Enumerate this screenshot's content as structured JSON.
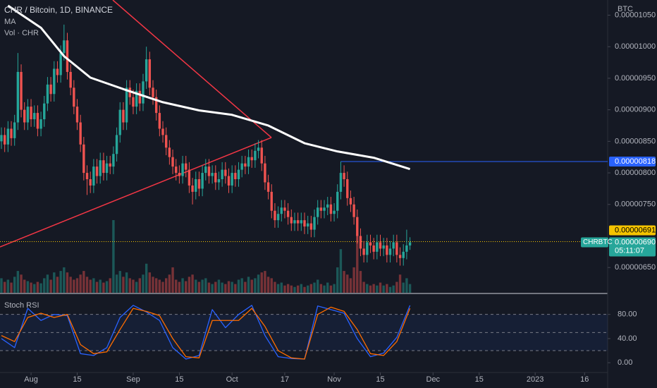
{
  "chart_data": {
    "type": "candlestick",
    "title": "CHR / Bitcoin, 1D, BINANCE",
    "ma_label": "MA",
    "volume_label": "Vol · CHR",
    "rsi_label": "Stoch RSI",
    "currency": "BTC",
    "up_color": "#26a69a",
    "down_color": "#ef5350",
    "xlim": [
      0,
      184
    ],
    "xticks": [
      {
        "value": 9,
        "label": "Aug"
      },
      {
        "value": 23,
        "label": "15"
      },
      {
        "value": 40,
        "label": "Sep"
      },
      {
        "value": 54,
        "label": "15"
      },
      {
        "value": 70,
        "label": "Oct"
      },
      {
        "value": 86,
        "label": "17"
      },
      {
        "value": 101,
        "label": "Nov"
      },
      {
        "value": 115,
        "label": "15"
      },
      {
        "value": 131,
        "label": "Dec"
      },
      {
        "value": 145,
        "label": "15"
      },
      {
        "value": 162,
        "label": "2023"
      },
      {
        "value": 177,
        "label": "16"
      }
    ],
    "ylim": [
      6.1e-06,
      1.074e-05
    ],
    "yticks": [
      {
        "value": 6.5e-06,
        "label": "0.00000650"
      },
      {
        "value": 7.5e-06,
        "label": "0.00000750"
      },
      {
        "value": 8e-06,
        "label": "0.00000800"
      },
      {
        "value": 8.5e-06,
        "label": "0.00000850"
      },
      {
        "value": 9e-06,
        "label": "0.00000900"
      },
      {
        "value": 9.5e-06,
        "label": "0.00000950"
      },
      {
        "value": 1e-05,
        "label": "0.00001000"
      },
      {
        "value": 1.05e-05,
        "label": "0.00001050"
      }
    ],
    "grid": false,
    "candles": [
      [
        8.5e-06,
        8.72e-06,
        8.38e-06,
        8.6e-06
      ],
      [
        8.6e-06,
        8.72e-06,
        8.33e-06,
        8.45e-06
      ],
      [
        8.45e-06,
        8.82e-06,
        8.33e-06,
        8.7e-06
      ],
      [
        8.7e-06,
        8.82e-06,
        8.43e-06,
        8.55e-06
      ],
      [
        8.55e-06,
        8.92e-06,
        8.43e-06,
        8.8e-06
      ],
      [
        8.8e-06,
        9.9e-06,
        8.68e-06,
        9.6e-06
      ],
      [
        9.6e-06,
        9.72e-06,
        8.88e-06,
        9e-06
      ],
      [
        9e-06,
        9.12e-06,
        8.68e-06,
        8.8e-06
      ],
      [
        8.8e-06,
        9.17e-06,
        8.68e-06,
        9.05e-06
      ],
      [
        9.05e-06,
        9.17e-06,
        8.73e-06,
        8.85e-06
      ],
      [
        8.85e-06,
        9.07e-06,
        8.73e-06,
        8.95e-06
      ],
      [
        8.95e-06,
        9.07e-06,
        8.58e-06,
        8.7e-06
      ],
      [
        8.7e-06,
        8.97e-06,
        8.58e-06,
        8.85e-06
      ],
      [
        8.85e-06,
        9.22e-06,
        8.73e-06,
        9.1e-06
      ],
      [
        9.1e-06,
        9.52e-06,
        8.98e-06,
        9.4e-06
      ],
      [
        9.4e-06,
        9.52e-06,
        9.13e-06,
        9.25e-06
      ],
      [
        9.25e-06,
        9.77e-06,
        9.13e-06,
        9.65e-06
      ],
      [
        9.65e-06,
        9.77e-06,
        9.43e-06,
        9.55e-06
      ],
      [
        9.55e-06,
        1.002e-05,
        9.43e-06,
        9.9e-06
      ],
      [
        9.9e-06,
        1.035e-05,
        9.78e-06,
        1.01e-05
      ],
      [
        1.01e-05,
        1.022e-05,
        9.48e-06,
        9.6e-06
      ],
      [
        9.6e-06,
        9.72e-06,
        9.23e-06,
        9.35e-06
      ],
      [
        9.35e-06,
        9.47e-06,
        8.93e-06,
        9.05e-06
      ],
      [
        9.05e-06,
        9.17e-06,
        8.68e-06,
        8.8e-06
      ],
      [
        8.8e-06,
        8.92e-06,
        8.33e-06,
        8.45e-06
      ],
      [
        8.45e-06,
        8.57e-06,
        7.88e-06,
        8e-06
      ],
      [
        8e-06,
        8.12e-06,
        7.65e-06,
        7.9e-06
      ],
      [
        7.9e-06,
        8.02e-06,
        7.68e-06,
        7.8e-06
      ],
      [
        7.8e-06,
        8.22e-06,
        7.68e-06,
        8.1e-06
      ],
      [
        8.1e-06,
        8.22e-06,
        7.83e-06,
        7.95e-06
      ],
      [
        7.95e-06,
        8.32e-06,
        7.83e-06,
        8.2e-06
      ],
      [
        8.2e-06,
        8.32e-06,
        7.88e-06,
        8e-06
      ],
      [
        8e-06,
        8.27e-06,
        7.88e-06,
        8.15e-06
      ],
      [
        8.15e-06,
        8.27e-06,
        7.98e-06,
        8.1e-06
      ],
      [
        8.1e-06,
        8.42e-06,
        7.98e-06,
        8.3e-06
      ],
      [
        8.3e-06,
        8.72e-06,
        8.18e-06,
        8.6e-06
      ],
      [
        8.6e-06,
        9.12e-06,
        8.48e-06,
        9e-06
      ],
      [
        9e-06,
        9.12e-06,
        8.68e-06,
        8.8e-06
      ],
      [
        8.8e-06,
        9.47e-06,
        8.68e-06,
        9.35e-06
      ],
      [
        9.35e-06,
        9.47e-06,
        9.08e-06,
        9.2e-06
      ],
      [
        9.2e-06,
        9.32e-06,
        8.93e-06,
        9.05e-06
      ],
      [
        9.05e-06,
        9.42e-06,
        8.93e-06,
        9.3e-06
      ],
      [
        9.3e-06,
        9.42e-06,
        8.98e-06,
        9.1e-06
      ],
      [
        9.1e-06,
        9.57e-06,
        8.98e-06,
        9.45e-06
      ],
      [
        9.45e-06,
        1e-05,
        9.33e-06,
        9.8e-06
      ],
      [
        9.8e-06,
        9.92e-06,
        9.23e-06,
        9.35e-06
      ],
      [
        9.35e-06,
        9.47e-06,
        9.08e-06,
        9.2e-06
      ],
      [
        9.2e-06,
        9.32e-06,
        8.83e-06,
        8.95e-06
      ],
      [
        8.95e-06,
        9.07e-06,
        8.58e-06,
        8.7e-06
      ],
      [
        8.7e-06,
        8.82e-06,
        8.48e-06,
        8.6e-06
      ],
      [
        8.6e-06,
        8.72e-06,
        8.28e-06,
        8.4e-06
      ],
      [
        8.4e-06,
        8.52e-06,
        8.13e-06,
        8.25e-06
      ],
      [
        8.25e-06,
        8.37e-06,
        7.98e-06,
        8.1e-06
      ],
      [
        8.1e-06,
        8.22e-06,
        7.88e-06,
        8e-06
      ],
      [
        8e-06,
        8.12e-06,
        7.83e-06,
        7.95e-06
      ],
      [
        7.95e-06,
        8.27e-06,
        7.83e-06,
        8.15e-06
      ],
      [
        8.15e-06,
        8.27e-06,
        7.93e-06,
        8.05e-06
      ],
      [
        8.05e-06,
        8.17e-06,
        7.68e-06,
        7.8e-06
      ],
      [
        7.8e-06,
        7.92e-06,
        7.5e-06,
        7.7e-06
      ],
      [
        7.7e-06,
        8.02e-06,
        7.58e-06,
        7.9e-06
      ],
      [
        7.9e-06,
        8.02e-06,
        7.63e-06,
        7.75e-06
      ],
      [
        7.75e-06,
        8.12e-06,
        7.63e-06,
        8e-06
      ],
      [
        8e-06,
        8.22e-06,
        7.88e-06,
        8.1e-06
      ],
      [
        8.1e-06,
        8.22e-06,
        7.83e-06,
        7.95e-06
      ],
      [
        7.95e-06,
        8.12e-06,
        7.83e-06,
        8e-06
      ],
      [
        8e-06,
        8.12e-06,
        7.73e-06,
        7.85e-06
      ],
      [
        7.85e-06,
        8.02e-06,
        7.73e-06,
        7.9e-06
      ],
      [
        7.9e-06,
        8.17e-06,
        7.78e-06,
        8.05e-06
      ],
      [
        8.05e-06,
        8.17e-06,
        7.83e-06,
        7.95e-06
      ],
      [
        7.95e-06,
        8.07e-06,
        7.68e-06,
        7.8e-06
      ],
      [
        7.8e-06,
        8.12e-06,
        7.68e-06,
        8e-06
      ],
      [
        8e-06,
        8.12e-06,
        7.78e-06,
        7.9e-06
      ],
      [
        7.9e-06,
        8.17e-06,
        7.78e-06,
        8.05e-06
      ],
      [
        8.05e-06,
        8.27e-06,
        7.93e-06,
        8.15e-06
      ],
      [
        8.15e-06,
        8.27e-06,
        7.98e-06,
        8.1e-06
      ],
      [
        8.1e-06,
        8.37e-06,
        7.98e-06,
        8.25e-06
      ],
      [
        8.25e-06,
        8.37e-06,
        8.08e-06,
        8.2e-06
      ],
      [
        8.2e-06,
        8.47e-06,
        8.08e-06,
        8.35e-06
      ],
      [
        8.35e-06,
        8.52e-06,
        8.23e-06,
        8.4e-06
      ],
      [
        8.4e-06,
        8.52e-06,
        8.03e-06,
        8.15e-06
      ],
      [
        8.15e-06,
        8.27e-06,
        7.73e-06,
        7.85e-06
      ],
      [
        7.85e-06,
        7.97e-06,
        7.58e-06,
        7.7e-06
      ],
      [
        7.7e-06,
        7.82e-06,
        7.28e-06,
        7.4e-06
      ],
      [
        7.4e-06,
        7.52e-06,
        7.13e-06,
        7.25e-06
      ],
      [
        7.25e-06,
        7.47e-06,
        7.13e-06,
        7.35e-06
      ],
      [
        7.35e-06,
        7.57e-06,
        7.23e-06,
        7.45e-06
      ],
      [
        7.45e-06,
        7.57e-06,
        7.28e-06,
        7.4e-06
      ],
      [
        7.4e-06,
        7.52e-06,
        7.18e-06,
        7.3e-06
      ],
      [
        7.3e-06,
        7.42e-06,
        7.08e-06,
        7.2e-06
      ],
      [
        7.2e-06,
        7.37e-06,
        7.08e-06,
        7.25e-06
      ],
      [
        7.25e-06,
        7.37e-06,
        7.08e-06,
        7.2e-06
      ],
      [
        7.2e-06,
        7.37e-06,
        7.08e-06,
        7.25e-06
      ],
      [
        7.25e-06,
        7.37e-06,
        7.03e-06,
        7.15e-06
      ],
      [
        7.15e-06,
        7.32e-06,
        7.03e-06,
        7.2e-06
      ],
      [
        7.2e-06,
        7.32e-06,
        6.98e-06,
        7.1e-06
      ],
      [
        7.1e-06,
        7.42e-06,
        6.98e-06,
        7.3e-06
      ],
      [
        7.3e-06,
        7.57e-06,
        7.18e-06,
        7.45e-06
      ],
      [
        7.45e-06,
        7.57e-06,
        7.28e-06,
        7.4e-06
      ],
      [
        7.4e-06,
        7.57e-06,
        7.28e-06,
        7.45e-06
      ],
      [
        7.45e-06,
        7.62e-06,
        7.33e-06,
        7.5e-06
      ],
      [
        7.5e-06,
        7.62e-06,
        7.23e-06,
        7.35e-06
      ],
      [
        7.35e-06,
        7.52e-06,
        7.23e-06,
        7.4e-06
      ],
      [
        7.4e-06,
        7.82e-06,
        7.28e-06,
        7.7e-06
      ],
      [
        7.7e-06,
        8.18e-06,
        7.58e-06,
        8e-06
      ],
      [
        8e-06,
        8.12e-06,
        7.78e-06,
        7.9e-06
      ],
      [
        7.9e-06,
        8.02e-06,
        7.48e-06,
        7.6e-06
      ],
      [
        7.6e-06,
        7.72e-06,
        7.38e-06,
        7.5e-06
      ],
      [
        7.5e-06,
        7.62e-06,
        7.18e-06,
        7.3e-06
      ],
      [
        7.3e-06,
        7.42e-06,
        6.88e-06,
        7e-06
      ],
      [
        7e-06,
        7.12e-06,
        6.68e-06,
        6.8e-06
      ],
      [
        6.8e-06,
        6.92e-06,
        6.58e-06,
        6.7e-06
      ],
      [
        6.7e-06,
        7.02e-06,
        6.58e-06,
        6.9e-06
      ],
      [
        6.9e-06,
        7.02e-06,
        6.73e-06,
        6.85e-06
      ],
      [
        6.85e-06,
        6.97e-06,
        6.63e-06,
        6.75e-06
      ],
      [
        6.75e-06,
        7.02e-06,
        6.63e-06,
        6.9e-06
      ],
      [
        6.9e-06,
        7.02e-06,
        6.68e-06,
        6.8e-06
      ],
      [
        6.8e-06,
        6.97e-06,
        6.68e-06,
        6.85e-06
      ],
      [
        6.85e-06,
        6.97e-06,
        6.58e-06,
        6.7e-06
      ],
      [
        6.7e-06,
        6.92e-06,
        6.58e-06,
        6.8e-06
      ],
      [
        6.8e-06,
        7.02e-06,
        6.68e-06,
        6.9e-06
      ],
      [
        6.9e-06,
        7.02e-06,
        6.58e-06,
        6.7e-06
      ],
      [
        6.7e-06,
        6.82e-06,
        6.53e-06,
        6.65e-06
      ],
      [
        6.65e-06,
        6.87e-06,
        6.53e-06,
        6.75e-06
      ],
      [
        6.75e-06,
        7.1e-06,
        6.63e-06,
        6.85e-06
      ],
      [
        6.85e-06,
        6.98e-06,
        6.78e-06,
        6.9e-06
      ]
    ],
    "volume": [
      20,
      15,
      18,
      14,
      22,
      30,
      25,
      18,
      16,
      14,
      12,
      15,
      13,
      20,
      25,
      18,
      28,
      22,
      30,
      35,
      28,
      22,
      18,
      20,
      25,
      30,
      22,
      18,
      20,
      15,
      18,
      14,
      16,
      20,
      100,
      25,
      30,
      22,
      28,
      20,
      18,
      15,
      20,
      25,
      40,
      28,
      22,
      20,
      18,
      15,
      20,
      25,
      35,
      18,
      15,
      20,
      16,
      22,
      25,
      18,
      15,
      18,
      20,
      14,
      12,
      15,
      18,
      14,
      12,
      16,
      15,
      12,
      18,
      20,
      15,
      22,
      18,
      20,
      25,
      28,
      30,
      22,
      20,
      15,
      12,
      14,
      10,
      12,
      10,
      8,
      10,
      12,
      8,
      10,
      12,
      14,
      18,
      12,
      10,
      14,
      10,
      12,
      35,
      60,
      30,
      25,
      20,
      35,
      80,
      30,
      15,
      12,
      10,
      12,
      10,
      14,
      10,
      12,
      8,
      10,
      15,
      25,
      14,
      20,
      12
    ],
    "ma": {
      "color": "#ffffff",
      "x": [
        2,
        12,
        19,
        27,
        38,
        49,
        60,
        70,
        81,
        92,
        102,
        113,
        124
      ],
      "values": [
        1.065e-05,
        1.03e-05,
        9.85e-06,
        9.51e-06,
        9.31e-06,
        9.12e-06,
        8.99e-06,
        8.92e-06,
        8.75e-06,
        8.47e-06,
        8.34e-06,
        8.24e-06,
        8.06e-06
      ]
    },
    "price_lines": [
      {
        "value": 8.18e-06,
        "label": "0.00000818",
        "color": "#2962ff"
      },
      {
        "value": 6.91e-06,
        "label": "0.00000691",
        "color": "#f5c400"
      }
    ],
    "last_price": {
      "symbol": "CHRBTC",
      "value": 6.9e-06,
      "label": "0.00000690",
      "countdown": "05:11:07"
    },
    "rsi": {
      "ylim": [
        -15,
        110
      ],
      "yticks": [
        {
          "value": 80,
          "label": "80.00"
        },
        {
          "value": 40,
          "label": "40.00"
        },
        {
          "value": 0,
          "label": "0.00"
        }
      ],
      "bands": [
        20,
        50,
        80
      ],
      "x": [
        0,
        4,
        8,
        12,
        16,
        20,
        24,
        28,
        32,
        36,
        40,
        44,
        48,
        52,
        56,
        60,
        64,
        68,
        72,
        76,
        80,
        84,
        88,
        92,
        96,
        100,
        104,
        108,
        112,
        116,
        120,
        124
      ],
      "series": [
        {
          "color": "#2962ff",
          "values": [
            40,
            25,
            90,
            70,
            80,
            78,
            15,
            12,
            25,
            75,
            95,
            84,
            70,
            25,
            6,
            12,
            88,
            58,
            80,
            95,
            45,
            10,
            7,
            6,
            94,
            88,
            82,
            40,
            10,
            16,
            42,
            95
          ]
        },
        {
          "color": "#ff6d00",
          "values": [
            45,
            35,
            75,
            82,
            75,
            80,
            30,
            15,
            18,
            55,
            90,
            85,
            78,
            40,
            10,
            8,
            70,
            70,
            70,
            90,
            60,
            20,
            8,
            6,
            80,
            92,
            85,
            55,
            15,
            12,
            35,
            90
          ]
        }
      ]
    }
  }
}
